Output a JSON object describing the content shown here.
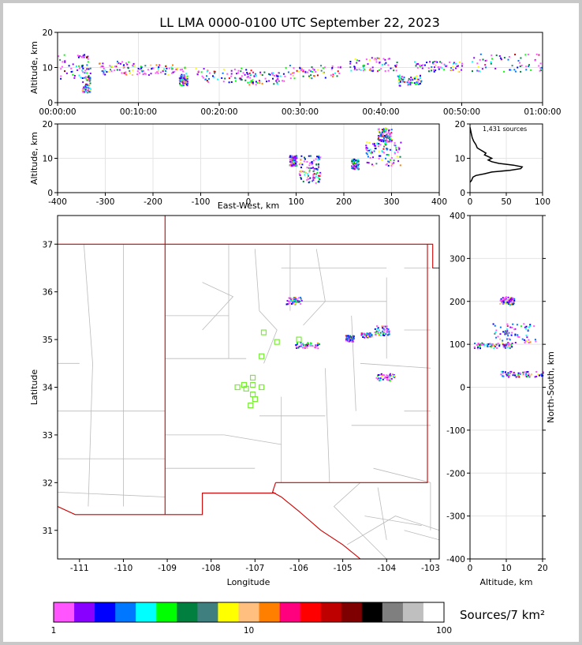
{
  "title": "LL LMA 0000-0100 UTC September 22, 2023",
  "colors": {
    "boundary_state": "#cc0000",
    "boundary_county": "#bbbbbb",
    "station": "#77ee33",
    "altitude_hist": "#000000"
  },
  "chart_data": [
    {
      "id": "time-height",
      "type": "scatter",
      "xlabel": "",
      "ylabel": "Altitude, km",
      "xticks": [
        "00:00:00",
        "00:10:00",
        "00:20:00",
        "00:30:00",
        "00:40:00",
        "00:50:00",
        "01:00:00"
      ],
      "xlim_minutes": [
        0,
        60
      ],
      "ylim": [
        0,
        20
      ],
      "yticks": [
        0,
        10,
        20
      ],
      "clusters": [
        {
          "t": [
            0,
            4
          ],
          "z": [
            7,
            14
          ]
        },
        {
          "t": [
            3,
            4
          ],
          "z": [
            3,
            8
          ]
        },
        {
          "t": [
            5,
            10
          ],
          "z": [
            8,
            12
          ]
        },
        {
          "t": [
            10,
            16
          ],
          "z": [
            8,
            11
          ]
        },
        {
          "t": [
            15,
            16
          ],
          "z": [
            5,
            8
          ]
        },
        {
          "t": [
            17,
            24
          ],
          "z": [
            6,
            10
          ]
        },
        {
          "t": [
            23,
            28
          ],
          "z": [
            5,
            9
          ]
        },
        {
          "t": [
            28,
            35
          ],
          "z": [
            7,
            11
          ]
        },
        {
          "t": [
            36,
            42
          ],
          "z": [
            9,
            13
          ]
        },
        {
          "t": [
            42,
            45
          ],
          "z": [
            5,
            8
          ]
        },
        {
          "t": [
            44,
            50
          ],
          "z": [
            9,
            12
          ]
        },
        {
          "t": [
            51,
            60
          ],
          "z": [
            9,
            14
          ]
        }
      ]
    },
    {
      "id": "east-west-height",
      "type": "scatter",
      "xlabel": "East-West, km",
      "ylabel": "Altitude, km",
      "xlim": [
        -400,
        400
      ],
      "xticks": [
        -400,
        -300,
        -200,
        -100,
        0,
        100,
        200,
        300,
        400
      ],
      "ylim": [
        0,
        20
      ],
      "yticks": [
        0,
        10,
        20
      ],
      "clusters": [
        {
          "x": [
            85,
            100
          ],
          "z": [
            8,
            11
          ]
        },
        {
          "x": [
            105,
            150
          ],
          "z": [
            3,
            11
          ]
        },
        {
          "x": [
            215,
            230
          ],
          "z": [
            7,
            10
          ]
        },
        {
          "x": [
            245,
            320
          ],
          "z": [
            8,
            15
          ]
        },
        {
          "x": [
            270,
            300
          ],
          "z": [
            15,
            19
          ]
        }
      ]
    },
    {
      "id": "altitude-histogram",
      "type": "line",
      "annotation": "1,431 sources",
      "xlim": [
        0,
        100
      ],
      "xticks": [
        0,
        50,
        100
      ],
      "ylim": [
        0,
        20
      ],
      "yticks": [
        0,
        10,
        20
      ],
      "profile": [
        [
          0,
          3
        ],
        [
          2,
          3.5
        ],
        [
          4,
          4.5
        ],
        [
          8,
          5
        ],
        [
          20,
          5.5
        ],
        [
          30,
          6
        ],
        [
          55,
          6.5
        ],
        [
          70,
          7
        ],
        [
          72,
          7.5
        ],
        [
          60,
          8
        ],
        [
          40,
          8.5
        ],
        [
          30,
          9
        ],
        [
          25,
          9.5
        ],
        [
          30,
          10
        ],
        [
          25,
          10.5
        ],
        [
          20,
          11
        ],
        [
          22,
          11.5
        ],
        [
          18,
          12
        ],
        [
          14,
          12.5
        ],
        [
          10,
          13
        ],
        [
          8,
          14
        ],
        [
          5,
          15
        ],
        [
          3,
          16
        ],
        [
          2,
          17
        ],
        [
          1,
          18
        ],
        [
          0,
          19
        ]
      ]
    },
    {
      "id": "plan-view",
      "type": "scatter",
      "xlabel": "Longitude",
      "ylabel": "Latitude",
      "xlim": [
        -111.5,
        -102.8
      ],
      "xticks": [
        -111,
        -110,
        -109,
        -108,
        -107,
        -106,
        -105,
        -104,
        -103
      ],
      "ylim": [
        30.4,
        37.6
      ],
      "yticks": [
        31,
        32,
        33,
        34,
        35,
        36,
        37
      ],
      "stations": [
        [
          -106.8,
          35.15
        ],
        [
          -106.5,
          34.95
        ],
        [
          -106.0,
          35.0
        ],
        [
          -106.85,
          34.65
        ],
        [
          -107.05,
          34.2
        ],
        [
          -107.25,
          34.05
        ],
        [
          -107.05,
          34.05
        ],
        [
          -106.85,
          34.0
        ],
        [
          -107.4,
          34.0
        ],
        [
          -107.2,
          33.97
        ],
        [
          -107.05,
          33.85
        ],
        [
          -107.0,
          33.75
        ],
        [
          -107.1,
          33.62
        ]
      ],
      "clusters": [
        {
          "lon": [
            -106.3,
            -105.95
          ],
          "lat": [
            35.75,
            35.9
          ]
        },
        {
          "lon": [
            -106.1,
            -105.55
          ],
          "lat": [
            34.83,
            34.95
          ]
        },
        {
          "lon": [
            -104.95,
            -104.75
          ],
          "lat": [
            34.97,
            35.1
          ]
        },
        {
          "lon": [
            -104.6,
            -104.35
          ],
          "lat": [
            35.05,
            35.15
          ]
        },
        {
          "lon": [
            -104.3,
            -103.95
          ],
          "lat": [
            35.1,
            35.3
          ]
        },
        {
          "lon": [
            -104.25,
            -103.8
          ],
          "lat": [
            34.15,
            34.3
          ]
        }
      ]
    },
    {
      "id": "north-south-height",
      "type": "scatter",
      "xlabel": "Altitude, km",
      "ylabel": "North-South, km",
      "xlim": [
        0,
        20
      ],
      "xticks": [
        0,
        10,
        20
      ],
      "ylim": [
        -400,
        400
      ],
      "yticks": [
        -400,
        -300,
        -200,
        -100,
        0,
        100,
        200,
        300,
        400
      ],
      "clusters": [
        {
          "z": [
            8,
            12
          ],
          "y": [
            192,
            212
          ]
        },
        {
          "z": [
            6,
            18
          ],
          "y": [
            105,
            150
          ]
        },
        {
          "z": [
            1,
            12
          ],
          "y": [
            92,
            105
          ]
        },
        {
          "z": [
            8,
            20
          ],
          "y": [
            25,
            38
          ]
        }
      ]
    },
    {
      "id": "colorbar",
      "type": "heatmap",
      "label": "Sources/7 km²",
      "scale": "log",
      "ticks": [
        "1",
        "10",
        "100"
      ],
      "colors": [
        "#ff55ff",
        "#8800ff",
        "#0000ff",
        "#0077ff",
        "#00ffff",
        "#00ff00",
        "#007f3f",
        "#3f7f7f",
        "#ffff00",
        "#ffbf7f",
        "#ff7f00",
        "#ff007f",
        "#ff0000",
        "#bf0000",
        "#7f0000",
        "#000000",
        "#7f7f7f",
        "#bfbfbf",
        "#ffffff"
      ]
    }
  ]
}
